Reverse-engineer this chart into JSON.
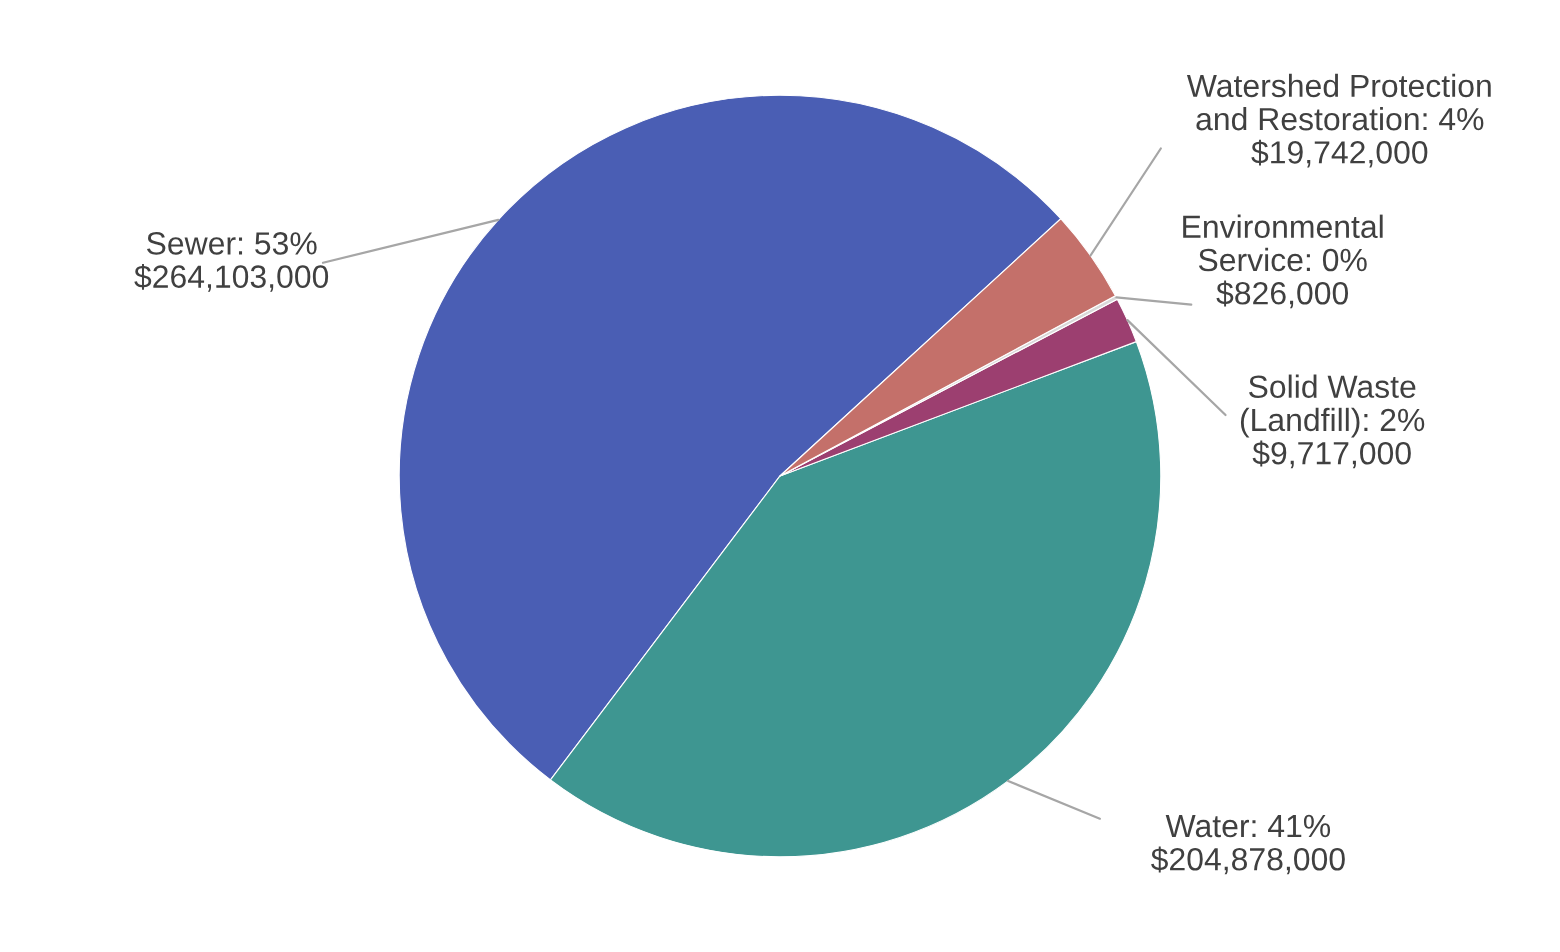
{
  "chart_data": {
    "type": "pie",
    "categories": [
      "Sewer",
      "Water",
      "Solid Waste\n(Landfill)",
      "Environmental\nService",
      "Watershed Protection\nand Restoration"
    ],
    "values": [
      264103000,
      204878000,
      9717000,
      826000,
      19742000
    ],
    "value_labels": [
      "53%\n$264,103,000",
      "41%\n$204,878,000",
      "2%\n$9,717,000",
      "0%\n$826,000",
      "4%\n$19,742,000"
    ],
    "colors": [
      "#4a5eb4",
      "#3e9691",
      "#9c3f70",
      "#d9d9d9",
      "#c4706a"
    ],
    "legend": false
  }
}
